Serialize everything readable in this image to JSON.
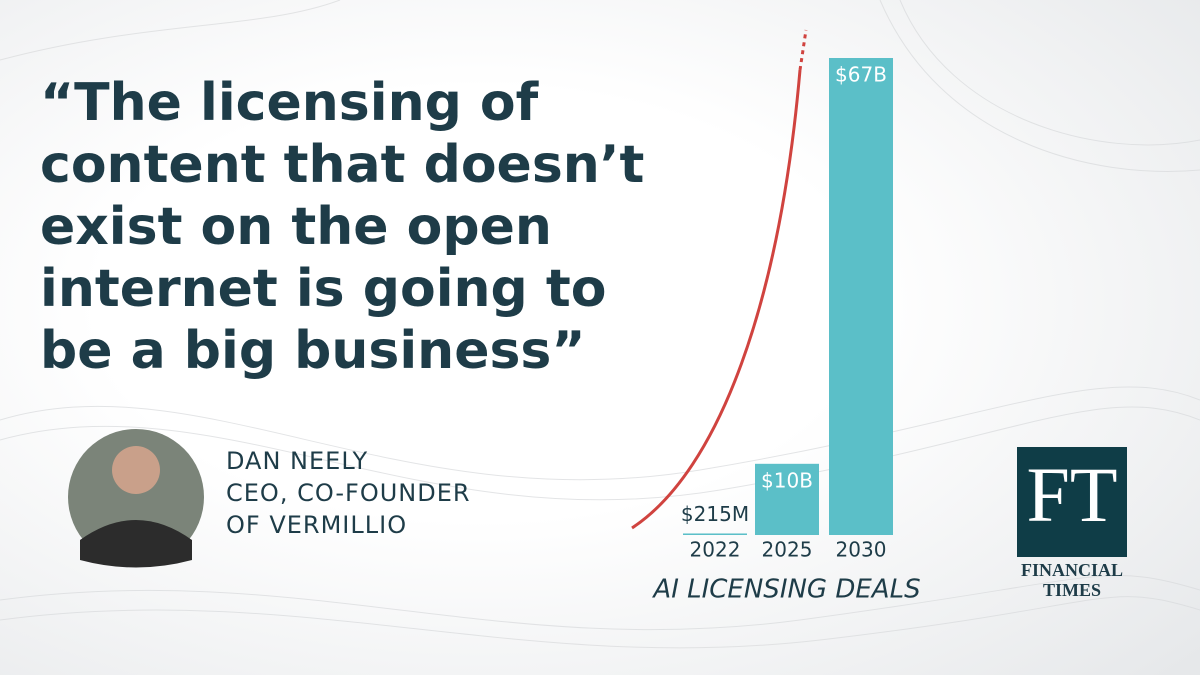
{
  "quote": {
    "lines": [
      "“The licensing of",
      "content that doesn’t",
      "exist on the open",
      "internet is going to",
      "be a big business”"
    ]
  },
  "person": {
    "name": "DAN NEELY",
    "role_lines": [
      "CEO, CO-FOUNDER",
      "OF VERMILLIO"
    ]
  },
  "logo": {
    "mark": "FT",
    "lines": [
      "FINANCIAL",
      "TIMES"
    ]
  },
  "chart_data": {
    "type": "bar",
    "title": "AI LICENSING DEALS",
    "categories": [
      "2022",
      "2025",
      "2030"
    ],
    "values": [
      0.215,
      10,
      67
    ],
    "value_labels": [
      "$215M",
      "$10B",
      "$67B"
    ],
    "color": "#5bbfc8"
  }
}
